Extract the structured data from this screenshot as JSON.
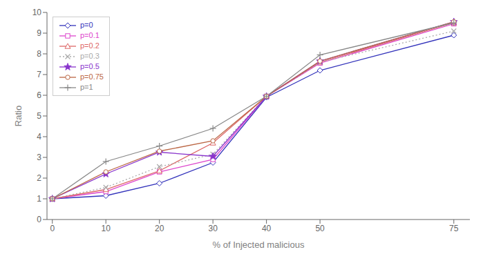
{
  "chart_data": {
    "type": "line",
    "x": [
      0,
      10,
      20,
      30,
      40,
      50,
      75
    ],
    "series": [
      {
        "name": "p=0",
        "color": "#3333bb",
        "marker": "diamond",
        "line_style": "solid",
        "values": [
          1.0,
          1.15,
          1.75,
          2.75,
          5.9,
          7.2,
          8.9
        ]
      },
      {
        "name": "p=0.1",
        "color": "#dd44cc",
        "marker": "square",
        "line_style": "solid",
        "values": [
          1.0,
          1.35,
          2.3,
          2.9,
          5.95,
          7.55,
          9.45
        ]
      },
      {
        "name": "p=0.2",
        "color": "#dd6666",
        "marker": "triangle",
        "line_style": "solid",
        "values": [
          1.0,
          1.45,
          2.35,
          3.7,
          5.95,
          7.6,
          9.5
        ]
      },
      {
        "name": "p=0.3",
        "color": "#aaaaaa",
        "marker": "x",
        "line_style": "dotted",
        "values": [
          1.0,
          1.55,
          2.55,
          3.15,
          5.95,
          7.6,
          9.1
        ]
      },
      {
        "name": "p=0.5",
        "color": "#8833cc",
        "marker": "star",
        "line_style": "solid",
        "values": [
          1.0,
          2.2,
          3.25,
          3.05,
          5.95,
          7.65,
          9.55
        ]
      },
      {
        "name": "p=0.75",
        "color": "#bb6644",
        "marker": "circle",
        "line_style": "solid",
        "values": [
          1.0,
          2.3,
          3.3,
          3.8,
          5.95,
          7.65,
          9.55
        ]
      },
      {
        "name": "p=1",
        "color": "#888888",
        "marker": "plus",
        "line_style": "solid",
        "values": [
          1.0,
          2.8,
          3.55,
          4.4,
          5.95,
          7.95,
          9.5
        ]
      }
    ],
    "xlabel": "% of Injected malicious",
    "ylabel": "Ratio",
    "xlim": [
      -1,
      78
    ],
    "ylim": [
      0,
      10
    ],
    "xticks": [
      0,
      10,
      20,
      30,
      40,
      50,
      75
    ],
    "yticks": [
      0,
      1,
      2,
      3,
      4,
      5,
      6,
      7,
      8,
      9,
      10
    ],
    "grid": false,
    "legend": "upper left"
  }
}
